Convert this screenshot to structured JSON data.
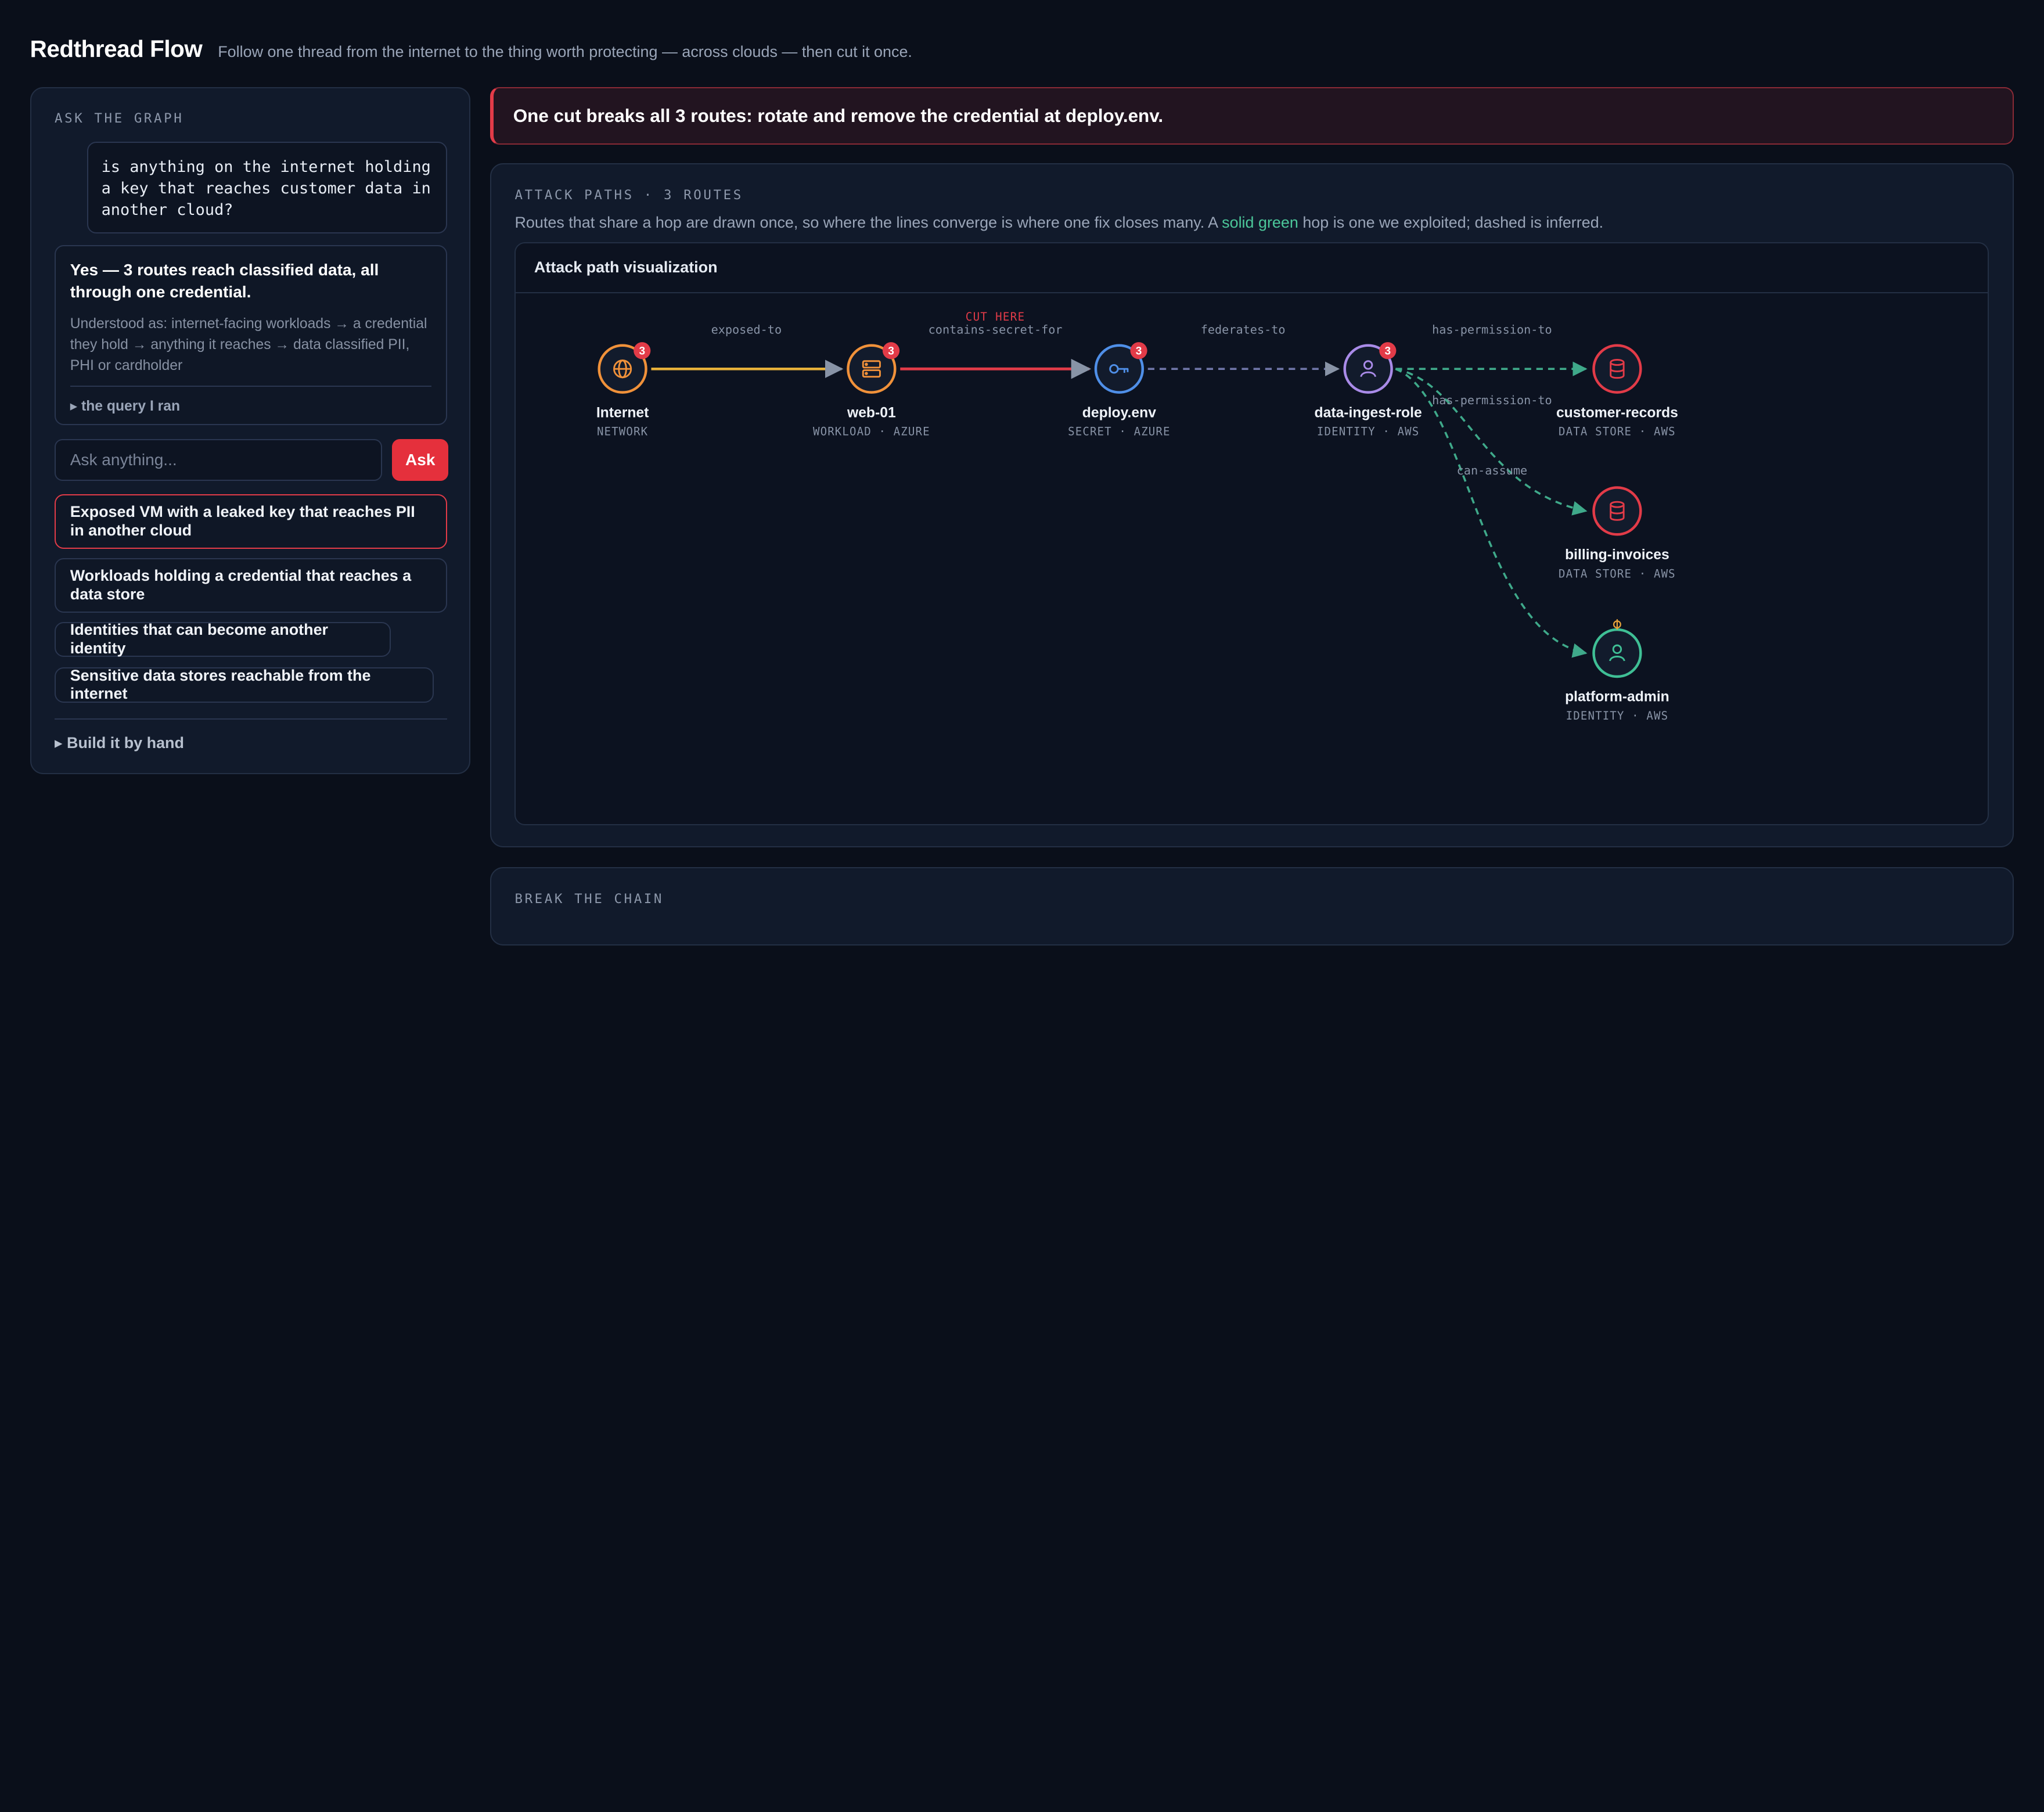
{
  "app": {
    "title": "Redthread Flow",
    "tagline": "Follow one thread from the internet to the thing worth protecting — across clouds — then cut it once."
  },
  "ask_panel": {
    "section_label": "ASK THE GRAPH",
    "query": "is anything on the internet holding a key that reaches customer data in another cloud?",
    "answer_title": "Yes — 3 routes reach classified data, all through one credential.",
    "answer_interpretation": "Understood as: internet-facing workloads → a credential they hold → anything it reaches → data classified PII, PHI or cardholder",
    "query_toggle": "▸ the query I ran",
    "input_placeholder": "Ask anything...",
    "ask_button": "Ask",
    "suggestions": [
      {
        "label": "Exposed VM with a leaked key that reaches PII in another cloud",
        "active": true
      },
      {
        "label": "Workloads holding a credential that reaches a data store",
        "active": false
      },
      {
        "label": "Identities that can become another identity",
        "active": false
      },
      {
        "label": "Sensitive data stores reachable from the internet",
        "active": false
      }
    ],
    "build_toggle": "▸ Build it by hand"
  },
  "banner": {
    "text": "One cut breaks all 3 routes: rotate and remove the credential at deploy.env."
  },
  "attack_paths": {
    "section_label": "ATTACK PATHS · 3 ROUTES",
    "desc_before": "Routes that share a hop are drawn once, so where the lines converge is where one fix closes many. A ",
    "desc_highlight": "solid green",
    "desc_after": " hop is one we exploited; dashed is inferred.",
    "viz_title": "Attack path visualization",
    "cut_label": "CUT HERE",
    "nodes": [
      {
        "id": "internet",
        "name": "Internet",
        "type": "NETWORK",
        "icon": "globe-icon",
        "color": "#f0913a",
        "badge": "3"
      },
      {
        "id": "web01",
        "name": "web-01",
        "type": "WORKLOAD · AZURE",
        "icon": "server-icon",
        "color": "#f0913a",
        "badge": "3"
      },
      {
        "id": "deploy",
        "name": "deploy.env",
        "type": "SECRET · AZURE",
        "icon": "key-icon",
        "color": "#4f8fe8",
        "badge": "3"
      },
      {
        "id": "ingest",
        "name": "data-ingest-role",
        "type": "IDENTITY · AWS",
        "icon": "user-icon",
        "color": "#a98be8",
        "badge": "3"
      },
      {
        "id": "customer",
        "name": "customer-records",
        "type": "DATA STORE · AWS",
        "icon": "database-icon",
        "color": "#e23b48",
        "badge": ""
      },
      {
        "id": "billing",
        "name": "billing-invoices",
        "type": "DATA STORE · AWS",
        "icon": "database-icon",
        "color": "#e23b48",
        "badge": ""
      },
      {
        "id": "admin",
        "name": "platform-admin",
        "type": "IDENTITY · AWS",
        "icon": "user-icon",
        "color": "#3fbf95",
        "badge": ""
      }
    ],
    "edges": [
      {
        "label": "exposed-to"
      },
      {
        "label": "contains-secret-for"
      },
      {
        "label": "federates-to"
      },
      {
        "label": "has-permission-to"
      },
      {
        "label": "has-permission-to"
      },
      {
        "label": "can-assume"
      }
    ]
  },
  "break_chain": {
    "section_label": "BREAK THE CHAIN"
  }
}
